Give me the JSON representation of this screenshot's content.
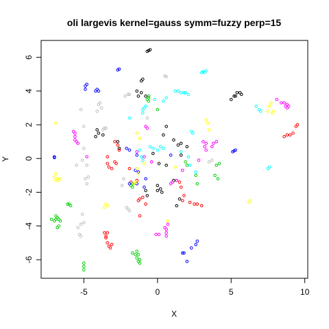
{
  "chart_data": {
    "type": "scatter",
    "title": "oli largevis kernel=gauss symm=fuzzy perp=15",
    "xlabel": "X",
    "ylabel": "Y",
    "xlim": [
      -7.9,
      10.2
    ],
    "ylim": [
      -7.1,
      7.0
    ],
    "x_ticks": [
      "-5",
      "0",
      "5",
      "10"
    ],
    "y_ticks": [
      "-6",
      "-4",
      "-2",
      "0",
      "2",
      "4",
      "6"
    ],
    "x_tick_values": [
      -5,
      0,
      5,
      10
    ],
    "y_tick_values": [
      -6,
      -4,
      -2,
      0,
      2,
      4,
      6
    ],
    "grid": false,
    "legend": "none",
    "marker": "open-circle",
    "series": [
      {
        "color": "#000000",
        "points": [
          [
            -0.6,
            6.4
          ],
          [
            -0.5,
            6.45
          ],
          [
            -0.7,
            6.35
          ],
          [
            -1.1,
            4.6
          ],
          [
            -1.0,
            4.7
          ],
          [
            -1.1,
            3.9
          ],
          [
            -1.4,
            4.0
          ],
          [
            -1.3,
            3.7
          ],
          [
            -0.8,
            3.7
          ],
          [
            -4.1,
            1.7
          ],
          [
            -4.0,
            1.5
          ],
          [
            -4.2,
            1.3
          ],
          [
            -3.7,
            1.4
          ],
          [
            -2.7,
            1.0
          ],
          [
            -2.6,
            0.6
          ],
          [
            0.6,
            1.9
          ],
          [
            0.4,
            1.4
          ],
          [
            1.1,
            1.1
          ],
          [
            1.4,
            0.8
          ],
          [
            1.6,
            0.9
          ],
          [
            2.0,
            0.7
          ],
          [
            1.6,
            0.2
          ],
          [
            0.6,
            -0.4
          ],
          [
            0.1,
            -0.3
          ],
          [
            -0.3,
            0.3
          ],
          [
            0.0,
            -1.6
          ],
          [
            0.2,
            -1.8
          ],
          [
            0.0,
            -1.9
          ],
          [
            0.3,
            -2.0
          ],
          [
            -0.8,
            -1.9
          ],
          [
            -0.7,
            -2.2
          ],
          [
            1.1,
            -1.3
          ],
          [
            1.3,
            -2.8
          ],
          [
            1.5,
            -2.4
          ],
          [
            5.2,
            3.7
          ],
          [
            5.4,
            3.9
          ],
          [
            5.0,
            3.5
          ],
          [
            5.7,
            3.8
          ],
          [
            5.6,
            3.9
          ],
          [
            5.3,
            3.7
          ]
        ]
      },
      {
        "color": "#ff0000",
        "points": [
          [
            -3.4,
            0.1
          ],
          [
            -3.4,
            -0.3
          ],
          [
            -3.3,
            -0.5
          ],
          [
            -3.1,
            -0.6
          ],
          [
            -2.9,
            -0.2
          ],
          [
            -2.8,
            -0.3
          ],
          [
            -2.9,
            1.0
          ],
          [
            -2.7,
            0.8
          ],
          [
            -2.6,
            0.5
          ],
          [
            -1.9,
            -0.6
          ],
          [
            -1.8,
            -1.4
          ],
          [
            -1.4,
            -1.3
          ],
          [
            -1.3,
            -2.5
          ],
          [
            -1.2,
            -2.4
          ],
          [
            -1.0,
            -2.3
          ],
          [
            -0.8,
            -2.7
          ],
          [
            -1.2,
            -3.4
          ],
          [
            -3.6,
            -4.4
          ],
          [
            -3.5,
            -4.6
          ],
          [
            -3.4,
            -4.4
          ],
          [
            -3.5,
            -4.7
          ],
          [
            -3.4,
            -5.0
          ],
          [
            -3.3,
            -5.2
          ],
          [
            -3.2,
            -5.3
          ],
          [
            -3.1,
            -5.1
          ],
          [
            1.3,
            -1.3
          ],
          [
            1.5,
            -1.4
          ],
          [
            1.6,
            -1.7
          ],
          [
            1.8,
            -2.2
          ],
          [
            1.7,
            -2.5
          ],
          [
            2.2,
            -2.6
          ],
          [
            2.5,
            -2.7
          ],
          [
            2.7,
            -2.7
          ],
          [
            3.0,
            -2.8
          ],
          [
            8.6,
            1.3
          ],
          [
            8.8,
            1.4
          ],
          [
            9.0,
            1.4
          ],
          [
            9.2,
            1.5
          ],
          [
            9.5,
            2.0
          ],
          [
            9.4,
            1.9
          ]
        ]
      },
      {
        "color": "#00cd00",
        "points": [
          [
            -6.7,
            -3.6
          ],
          [
            -7.0,
            -3.7
          ],
          [
            -6.9,
            -3.6
          ],
          [
            -7.2,
            -3.6
          ],
          [
            -6.8,
            -3.5
          ],
          [
            -6.9,
            -3.4
          ],
          [
            -6.6,
            -3.7
          ],
          [
            -6.7,
            -4.0
          ],
          [
            -6.8,
            -4.1
          ],
          [
            -6.0,
            -2.7
          ],
          [
            -5.9,
            -2.8
          ],
          [
            -6.1,
            -2.7
          ],
          [
            -5.0,
            -6.2
          ],
          [
            -5.0,
            -6.4
          ],
          [
            -5.0,
            -6.6
          ],
          [
            -1.7,
            -5.6
          ],
          [
            -1.5,
            -5.7
          ],
          [
            -1.4,
            -5.5
          ],
          [
            -1.3,
            -5.7
          ],
          [
            -1.4,
            -5.9
          ],
          [
            -1.3,
            -6.1
          ],
          [
            -1.2,
            -6.2
          ],
          [
            -1.2,
            -6.0
          ],
          [
            -1.6,
            -1.5
          ],
          [
            -1.7,
            -1.7
          ],
          [
            -1.8,
            -1.6
          ],
          [
            -1.7,
            -1.5
          ],
          [
            -0.6,
            3.7
          ],
          [
            -0.6,
            3.6
          ],
          [
            -0.7,
            3.5
          ],
          [
            -0.6,
            3.4
          ],
          [
            0.0,
            2.9
          ],
          [
            4.2,
            -0.3
          ],
          [
            4.0,
            -0.4
          ],
          [
            3.9,
            -1.0
          ],
          [
            4.1,
            -1.2
          ],
          [
            2.6,
            -1.0
          ],
          [
            2.7,
            -1.5
          ],
          [
            1.9,
            -0.2
          ],
          [
            2.0,
            -0.4
          ]
        ]
      },
      {
        "color": "#0000ff",
        "points": [
          [
            -2.6,
            5.3
          ],
          [
            -2.7,
            5.25
          ],
          [
            -4.9,
            4.3
          ],
          [
            -4.8,
            4.4
          ],
          [
            -4.9,
            4.1
          ],
          [
            -4.2,
            4.0
          ],
          [
            -4.1,
            4.1
          ],
          [
            -4.0,
            4.0
          ],
          [
            -7.0,
            0.1
          ],
          [
            -7.0,
            0.05
          ],
          [
            -2.1,
            0.6
          ],
          [
            -1.9,
            0.5
          ],
          [
            -1.4,
            0.2
          ],
          [
            -1.5,
            -0.7
          ],
          [
            -1.3,
            -0.8
          ],
          [
            -0.8,
            -1.2
          ],
          [
            -1.4,
            -1.5
          ],
          [
            -0.9,
            -1.7
          ],
          [
            0.9,
            0.2
          ],
          [
            1.8,
            -5.6
          ],
          [
            1.7,
            -5.6
          ],
          [
            2.0,
            -6.1
          ],
          [
            2.3,
            -5.3
          ],
          [
            2.6,
            -5.1
          ],
          [
            2.7,
            -4.9
          ],
          [
            5.1,
            0.4
          ],
          [
            5.2,
            0.45
          ],
          [
            5.3,
            0.5
          ],
          [
            -1.9,
            -1.5
          ]
        ]
      },
      {
        "color": "#00ffff",
        "points": [
          [
            3.0,
            5.1
          ],
          [
            3.1,
            5.15
          ],
          [
            3.2,
            5.1
          ],
          [
            3.3,
            5.2
          ],
          [
            1.2,
            4.0
          ],
          [
            1.4,
            4.0
          ],
          [
            1.6,
            3.9
          ],
          [
            1.8,
            3.9
          ],
          [
            1.9,
            3.9
          ],
          [
            2.1,
            3.8
          ],
          [
            0.6,
            3.6
          ],
          [
            0.4,
            3.4
          ],
          [
            -0.2,
            3.5
          ],
          [
            -0.9,
            3.0
          ],
          [
            -1.0,
            2.9
          ],
          [
            -1.0,
            2.7
          ],
          [
            -0.8,
            3.1
          ],
          [
            0.2,
            0.7
          ],
          [
            0.4,
            0.6
          ],
          [
            0.0,
            0.5
          ],
          [
            -0.3,
            0.6
          ],
          [
            -0.5,
            0.7
          ],
          [
            -1.2,
            0.5
          ],
          [
            -1.1,
            0.1
          ],
          [
            -1.0,
            -0.1
          ],
          [
            2.3,
            1.6
          ],
          [
            2.4,
            1.5
          ],
          [
            1.6,
            0.4
          ],
          [
            2.1,
            0.1
          ],
          [
            2.2,
            -0.4
          ],
          [
            2.6,
            -0.8
          ],
          [
            6.7,
            3.1
          ],
          [
            6.9,
            2.9
          ],
          [
            7.0,
            2.8
          ],
          [
            7.6,
            -0.5
          ],
          [
            7.5,
            -0.6
          ],
          [
            -1.9,
            2.4
          ]
        ]
      },
      {
        "color": "#ff00ff",
        "points": [
          [
            -5.7,
            1.6
          ],
          [
            -5.6,
            1.5
          ],
          [
            -5.6,
            1.3
          ],
          [
            -5.6,
            1.1
          ],
          [
            -5.5,
            1.0
          ],
          [
            -5.4,
            0.9
          ],
          [
            -4.8,
            0.1
          ],
          [
            -1.4,
            0.4
          ],
          [
            -0.9,
            0.1
          ],
          [
            -0.8,
            1.9
          ],
          [
            -0.7,
            1.8
          ],
          [
            -0.4,
            -0.2
          ],
          [
            -0.1,
            -4.5
          ],
          [
            0.1,
            -4.5
          ],
          [
            0.5,
            -4.1
          ],
          [
            0.6,
            -4.2
          ],
          [
            0.6,
            -4.4
          ],
          [
            0.7,
            -3.9
          ],
          [
            0.6,
            -4.6
          ],
          [
            0.9,
            -1.5
          ],
          [
            1.0,
            -1.4
          ],
          [
            1.3,
            -1.3
          ],
          [
            3.3,
            0.9
          ],
          [
            3.2,
            0.7
          ],
          [
            3.3,
            0.5
          ],
          [
            3.1,
            1.0
          ],
          [
            4.0,
            1.0
          ],
          [
            3.8,
            0.9
          ],
          [
            3.7,
            0.7
          ],
          [
            8.1,
            3.5
          ],
          [
            8.4,
            3.3
          ],
          [
            8.6,
            3.3
          ],
          [
            8.8,
            3.2
          ],
          [
            8.7,
            3.1
          ],
          [
            8.8,
            3.0
          ],
          [
            8.9,
            3.1
          ],
          [
            1.7,
            -0.7
          ],
          [
            2.8,
            -0.1
          ]
        ]
      },
      {
        "color": "#ffff00",
        "points": [
          [
            -6.9,
            2.1
          ],
          [
            -6.9,
            -0.9
          ],
          [
            -7.0,
            -1.1
          ],
          [
            -6.8,
            -1.2
          ],
          [
            -6.7,
            -1.3
          ],
          [
            -6.6,
            -1.2
          ],
          [
            -6.9,
            -1.3
          ],
          [
            -3.5,
            -2.7
          ],
          [
            -3.4,
            -2.8
          ],
          [
            -3.6,
            -2.9
          ],
          [
            -1.5,
            -1.4
          ],
          [
            -1.6,
            -1.5
          ],
          [
            -1.4,
            -0.6
          ],
          [
            -1.3,
            -0.9
          ],
          [
            -1.2,
            1.2
          ],
          [
            -1.4,
            1.5
          ],
          [
            -0.9,
            -0.3
          ],
          [
            0.7,
            -3.7
          ],
          [
            3.3,
            2.3
          ],
          [
            3.4,
            2.1
          ],
          [
            3.5,
            1.7
          ],
          [
            7.7,
            3.3
          ],
          [
            7.6,
            3.1
          ],
          [
            7.5,
            2.8
          ],
          [
            7.8,
            2.7
          ],
          [
            7.9,
            2.8
          ],
          [
            6.2,
            -2.6
          ],
          [
            6.3,
            -2.5
          ],
          [
            1.2,
            -0.5
          ]
        ]
      },
      {
        "color": "#bebebe",
        "points": [
          [
            0.5,
            4.9
          ],
          [
            0.6,
            4.85
          ],
          [
            -3.9,
            3.3
          ],
          [
            -4.0,
            3.2
          ],
          [
            -3.8,
            3.0
          ],
          [
            -4.1,
            2.8
          ],
          [
            -5.2,
            2.9
          ],
          [
            -3.6,
            1.8
          ],
          [
            -3.7,
            1.7
          ],
          [
            -3.5,
            1.8
          ],
          [
            -5.0,
            1.9
          ],
          [
            -5.0,
            0.6
          ],
          [
            -5.1,
            -0.1
          ],
          [
            -4.8,
            -0.4
          ],
          [
            -4.7,
            -1.1
          ],
          [
            -4.8,
            -1.5
          ],
          [
            -4.9,
            -1.2
          ],
          [
            -5.5,
            -0.4
          ],
          [
            -5.1,
            -3.3
          ],
          [
            -5.2,
            -3.9
          ],
          [
            -5.4,
            -4.1
          ],
          [
            -5.3,
            -4.5
          ],
          [
            -5.2,
            -4.6
          ],
          [
            -5.0,
            -3.8
          ],
          [
            -2.0,
            -3.0
          ],
          [
            -2.1,
            -2.9
          ],
          [
            -1.9,
            -3.1
          ],
          [
            -2.2,
            3.7
          ],
          [
            -2.0,
            3.8
          ],
          [
            -1.9,
            3.8
          ],
          [
            3.7,
            -0.1
          ],
          [
            3.5,
            -0.2
          ],
          [
            -2.3,
            -1.2
          ],
          [
            -2.4,
            -1.6
          ],
          [
            -0.7,
            2.4
          ]
        ]
      }
    ]
  }
}
